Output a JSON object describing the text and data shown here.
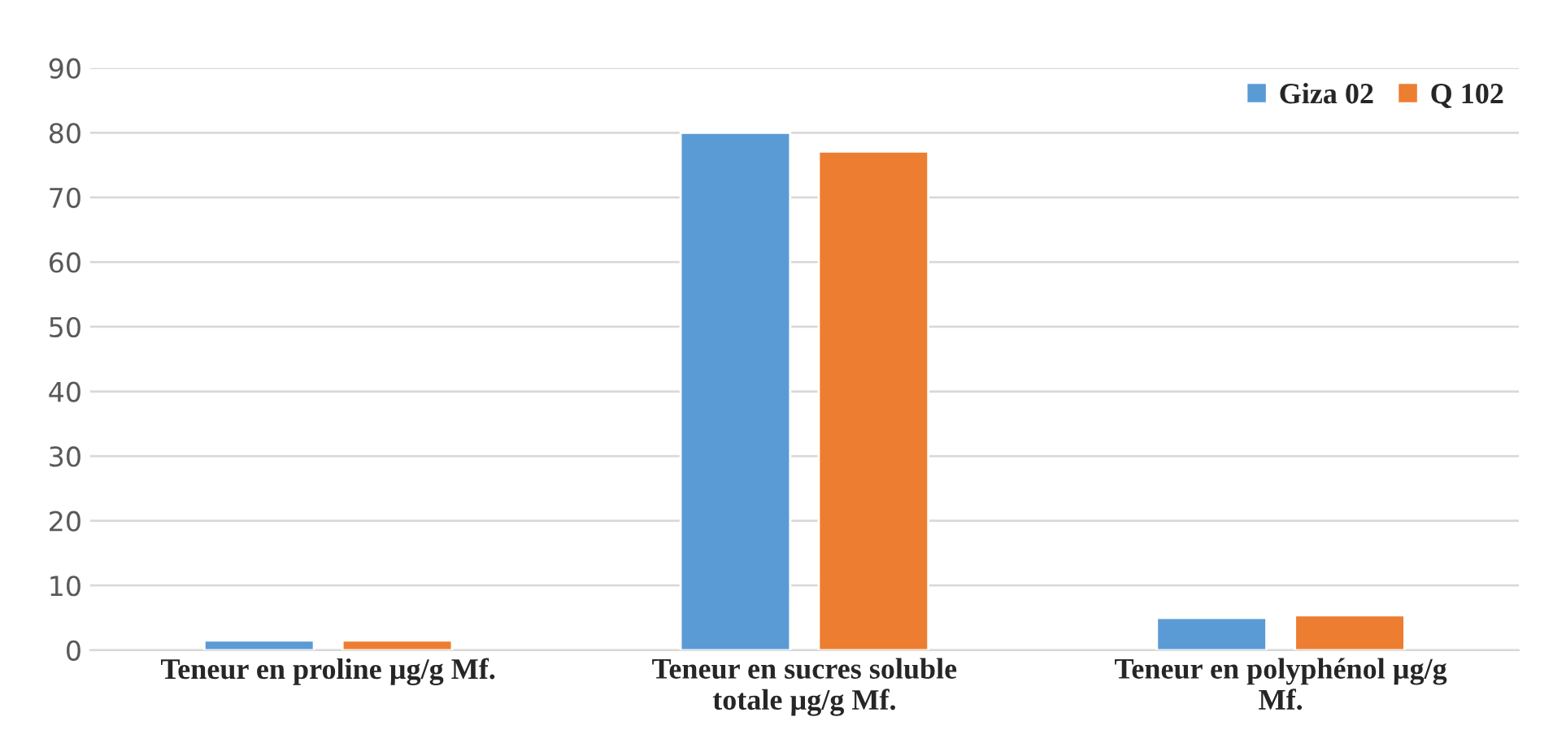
{
  "chart_data": {
    "type": "bar",
    "categories": [
      "Teneur en proline µg/g Mf.",
      "Teneur en sucres soluble\ntotale µg/g Mf.",
      "Teneur en polyphénol µg/g\nMf."
    ],
    "series": [
      {
        "name": "Giza 02",
        "color": "#5b9bd5",
        "values": [
          1.5,
          80,
          5.0
        ]
      },
      {
        "name": "Q 102",
        "color": "#ed7d31",
        "values": [
          1.5,
          77.1,
          5.4
        ]
      }
    ],
    "ylim": [
      0,
      90
    ],
    "yticks": [
      0,
      10,
      20,
      30,
      40,
      50,
      60,
      70,
      80,
      90
    ],
    "grid": "y",
    "legend": "top right"
  }
}
